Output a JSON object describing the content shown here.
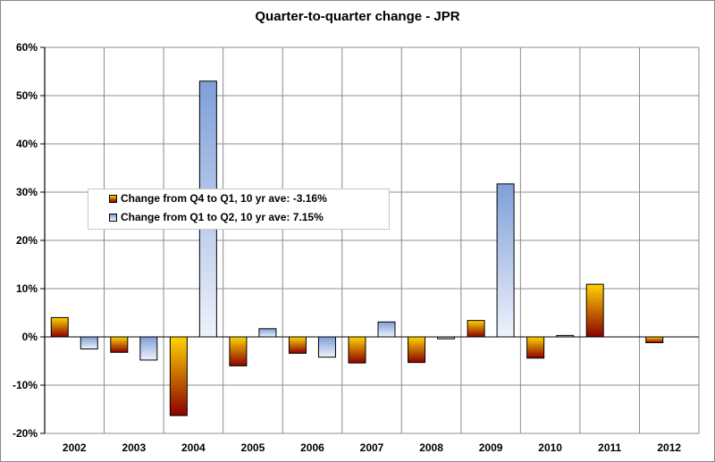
{
  "chart_data": {
    "type": "bar",
    "title": "Quarter-to-quarter change - JPR",
    "categories": [
      "2002",
      "2003",
      "2004",
      "2005",
      "2006",
      "2007",
      "2008",
      "2009",
      "2010",
      "2011",
      "2012"
    ],
    "series": [
      {
        "name": "Change from Q4 to Q1, 10 yr ave: -3.16%",
        "values": [
          4.0,
          -3.2,
          -16.3,
          -6.0,
          -3.4,
          -5.4,
          -5.3,
          3.4,
          -4.4,
          10.9,
          -1.2
        ]
      },
      {
        "name": "Change from Q1 to Q2, 10 yr ave: 7.15%",
        "values": [
          -2.5,
          -4.8,
          53.0,
          1.7,
          -4.2,
          3.1,
          -0.4,
          31.7,
          0.3,
          null,
          null
        ]
      }
    ],
    "y_ticks": [
      "60%",
      "50%",
      "40%",
      "30%",
      "20%",
      "10%",
      "0%",
      "-10%",
      "-20%"
    ],
    "ylim": [
      -20,
      60
    ],
    "grid": true,
    "legend_position": "left-middle",
    "colors": {
      "series1_top": "#ffd400",
      "series1_bottom": "#8b0000",
      "series2_top": "#7f9fd8",
      "series2_bottom": "#eef2fb",
      "grid": "#8c8c8c",
      "axis": "#000000"
    }
  }
}
